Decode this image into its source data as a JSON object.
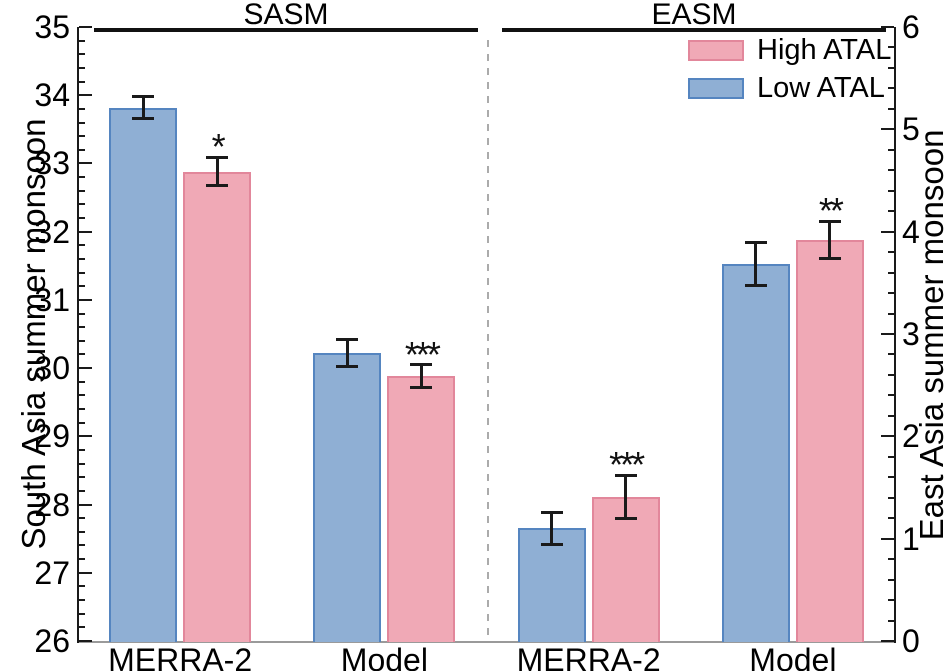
{
  "chart_data": {
    "type": "bar",
    "panels": [
      {
        "label": "SASM",
        "axis": "left",
        "groups": [
          {
            "category": "MERRA-2",
            "bars": [
              {
                "series": "Low ATAL",
                "value": 33.82,
                "err": 0.16,
                "sig": ""
              },
              {
                "series": "High ATAL",
                "value": 32.88,
                "err": 0.21,
                "sig": "*"
              }
            ]
          },
          {
            "category": "Model",
            "bars": [
              {
                "series": "Low ATAL",
                "value": 30.22,
                "err": 0.2,
                "sig": ""
              },
              {
                "series": "High ATAL",
                "value": 29.88,
                "err": 0.17,
                "sig": "***"
              }
            ]
          }
        ]
      },
      {
        "label": "EASM",
        "axis": "right",
        "groups": [
          {
            "category": "MERRA-2",
            "bars": [
              {
                "series": "Low ATAL",
                "value": 1.1,
                "err": 0.16,
                "sig": ""
              },
              {
                "series": "High ATAL",
                "value": 1.41,
                "err": 0.21,
                "sig": "***"
              }
            ]
          },
          {
            "category": "Model",
            "bars": [
              {
                "series": "Low ATAL",
                "value": 3.68,
                "err": 0.21,
                "sig": ""
              },
              {
                "series": "High ATAL",
                "value": 3.92,
                "err": 0.18,
                "sig": "**"
              }
            ]
          }
        ]
      }
    ],
    "left_axis": {
      "label": "South Asia summer monsoon",
      "min": 26,
      "max": 35,
      "major_step": 1,
      "minor_step": 0.2
    },
    "right_axis": {
      "label": "East Asia summer monsoon",
      "min": 0,
      "max": 6,
      "major_step": 1,
      "minor_step": 0.2
    },
    "legend": {
      "position": "top-right",
      "items": [
        {
          "label": "High ATAL",
          "fill": "#F0A9B6",
          "border": "#E2879B"
        },
        {
          "label": "Low ATAL",
          "fill": "#8FAFD4",
          "border": "#5585C0"
        }
      ]
    },
    "grid": "off"
  }
}
